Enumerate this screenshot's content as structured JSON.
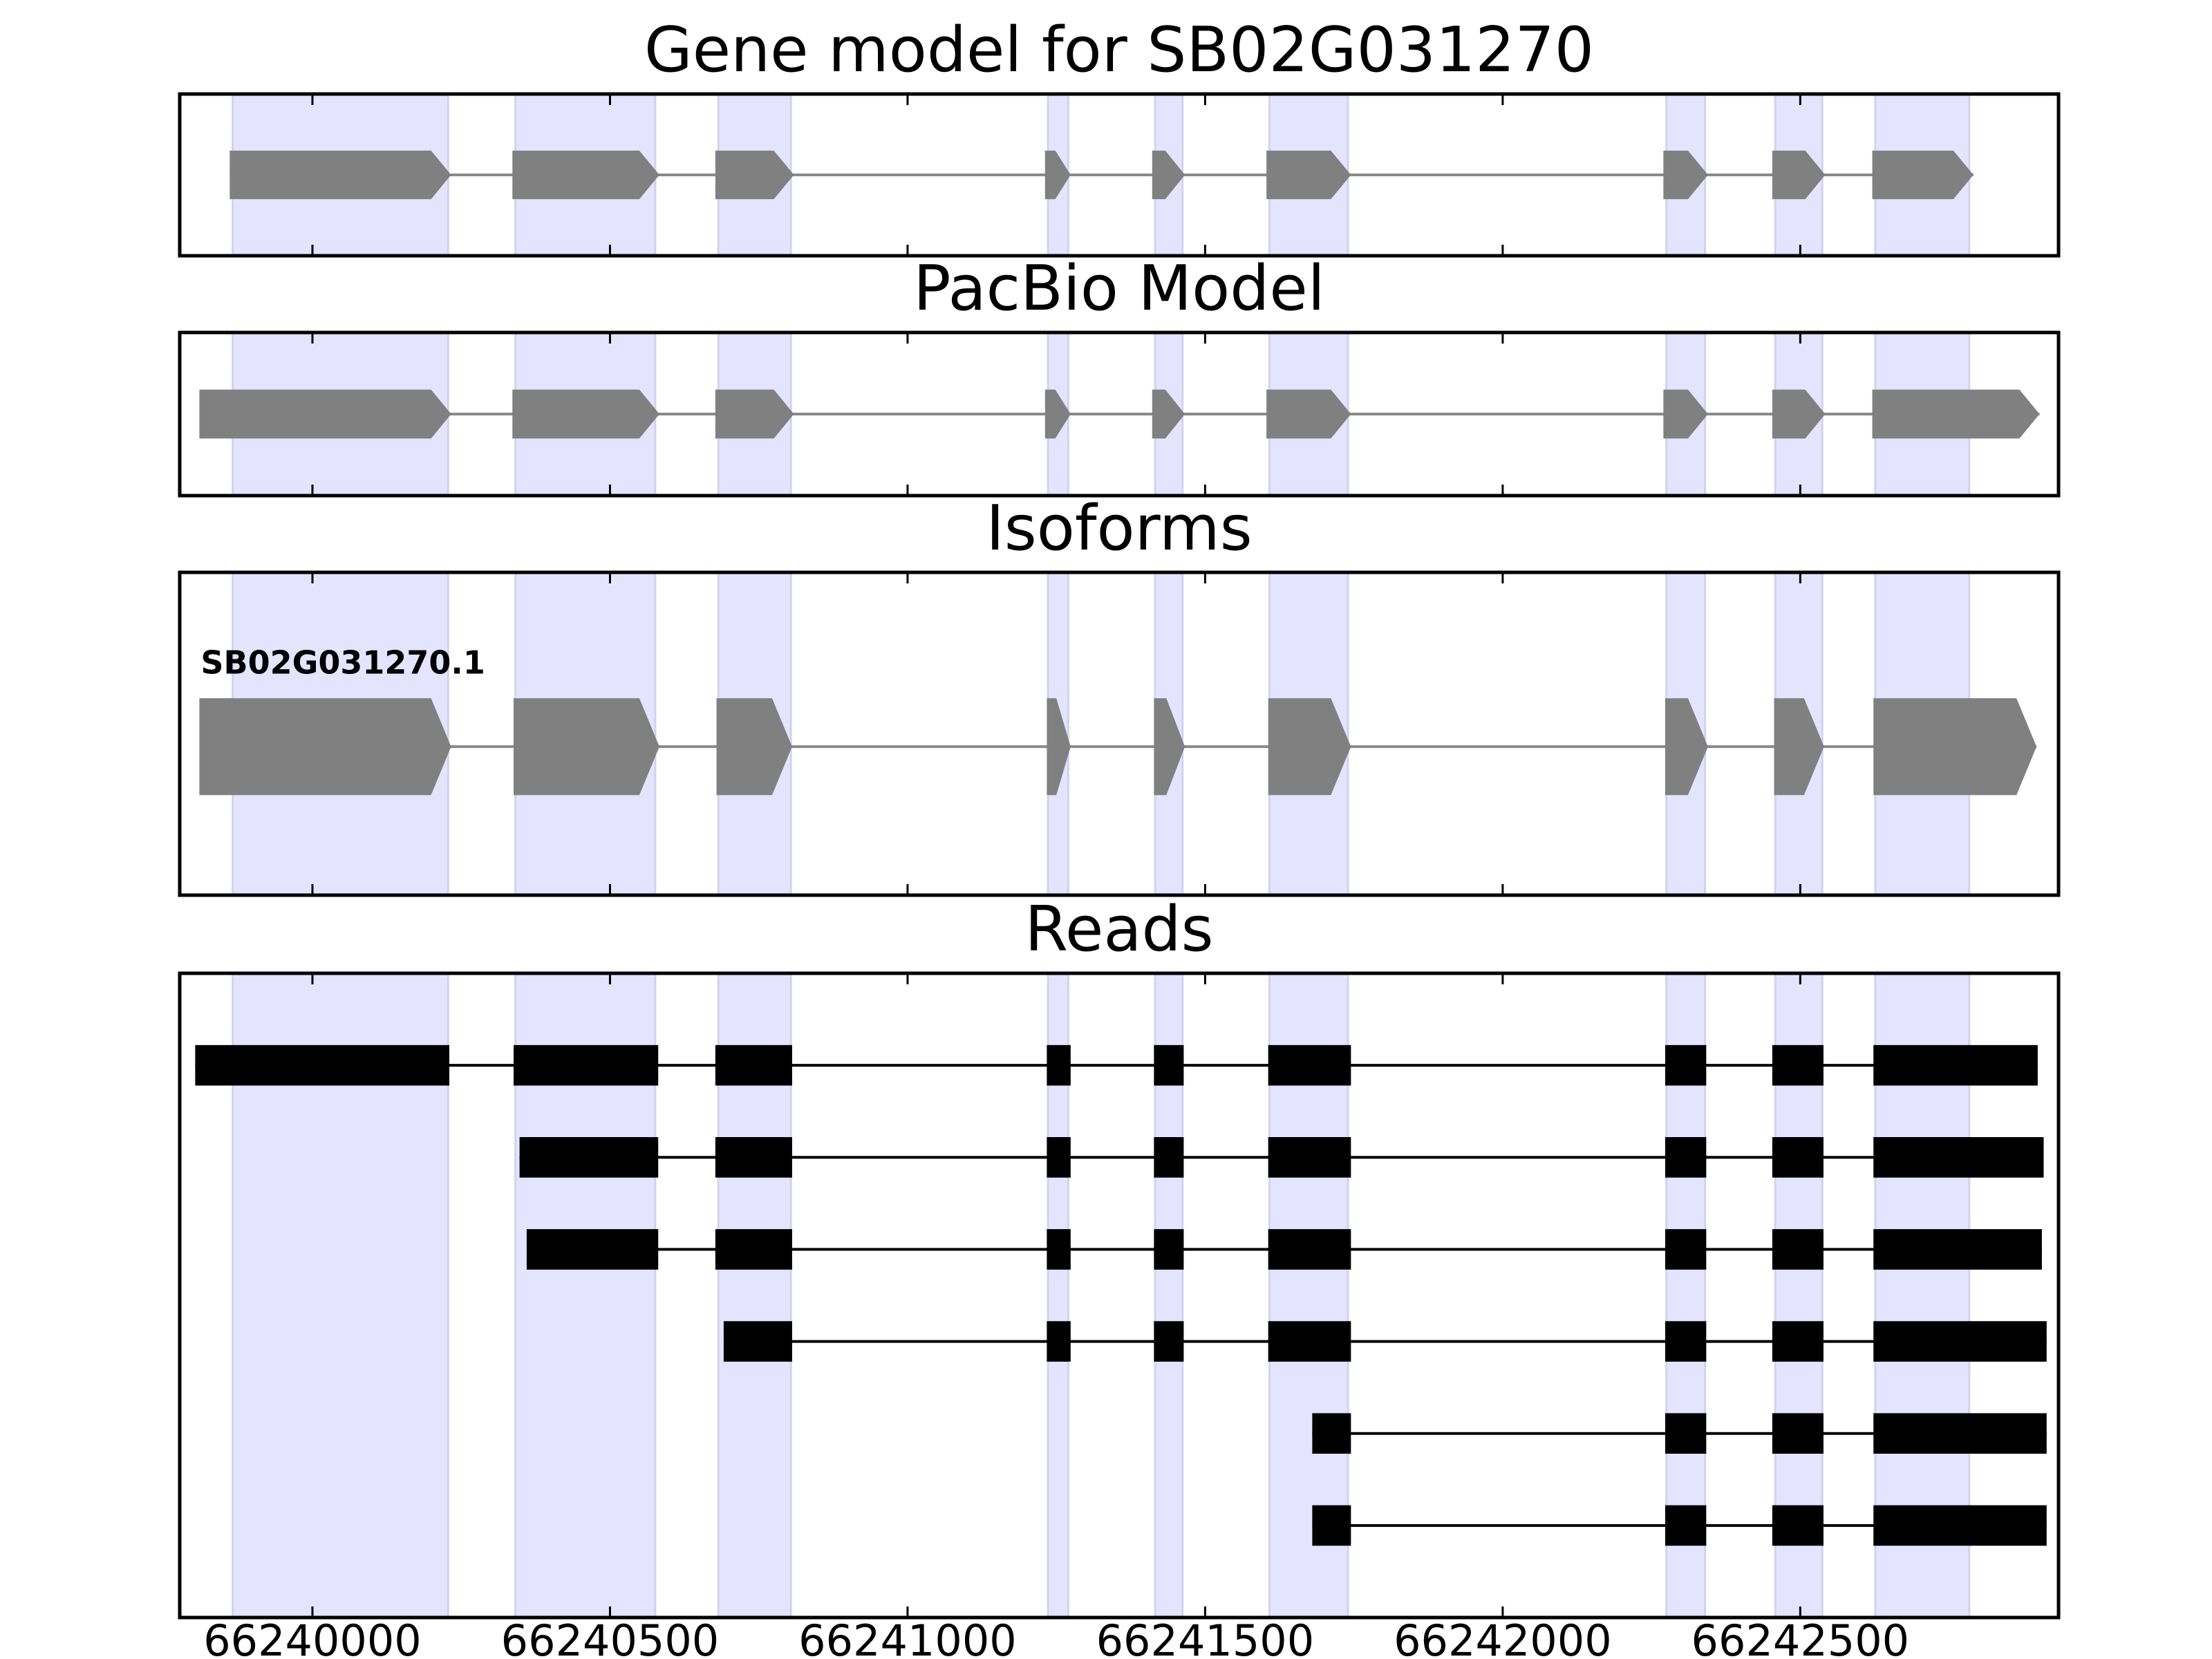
{
  "chart_data": [
    {
      "type": "gene_model",
      "title": "Gene model for SB02G031270",
      "color": "#808080",
      "highlight_color": "#e4e4ff",
      "xlim": [
        66239777,
        66242934
      ],
      "xticks": [
        66240000,
        66240500,
        66241000,
        66241500,
        66242000,
        66242500
      ],
      "highlights": [
        [
          66239866,
          66240228
        ],
        [
          66240341,
          66240576
        ],
        [
          66240682,
          66240804
        ],
        [
          66241236,
          66241270
        ],
        [
          66241416,
          66241462
        ],
        [
          66241608,
          66241740
        ],
        [
          66242275,
          66242340
        ],
        [
          66242458,
          66242537
        ],
        [
          66242626,
          66242784
        ]
      ],
      "features": [
        {
          "exons": [
            [
              66239861,
              66240233
            ],
            [
              66240336,
              66240583
            ],
            [
              66240677,
              66240809
            ],
            [
              66241231,
              66241274
            ],
            [
              66241411,
              66241466
            ],
            [
              66241603,
              66241745
            ],
            [
              66242270,
              66242345
            ],
            [
              66242453,
              66242542
            ],
            [
              66242621,
              66242791
            ]
          ]
        }
      ]
    },
    {
      "type": "gene_model",
      "title": "PacBio Model",
      "color": "#808080",
      "highlight_color": "#e4e4ff",
      "xlim": [
        66239777,
        66242934
      ],
      "xticks": [
        66240000,
        66240500,
        66241000,
        66241500,
        66242000,
        66242500
      ],
      "highlights": [
        [
          66239866,
          66240228
        ],
        [
          66240341,
          66240576
        ],
        [
          66240682,
          66240804
        ],
        [
          66241236,
          66241270
        ],
        [
          66241416,
          66241462
        ],
        [
          66241608,
          66241740
        ],
        [
          66242275,
          66242340
        ],
        [
          66242458,
          66242537
        ],
        [
          66242626,
          66242784
        ]
      ],
      "features": [
        {
          "exons": [
            [
              66239810,
              66240233
            ],
            [
              66240336,
              66240583
            ],
            [
              66240677,
              66240809
            ],
            [
              66241231,
              66241274
            ],
            [
              66241411,
              66241466
            ],
            [
              66241603,
              66241745
            ],
            [
              66242270,
              66242345
            ],
            [
              66242453,
              66242542
            ],
            [
              66242621,
              66242902
            ]
          ]
        }
      ]
    },
    {
      "type": "gene_model",
      "title": "Isoforms",
      "color": "#808080",
      "highlight_color": "#e4e4ff",
      "xlim": [
        66239777,
        66242934
      ],
      "xticks": [
        66240000,
        66240500,
        66241000,
        66241500,
        66242000,
        66242500
      ],
      "highlights": [
        [
          66239866,
          66240228
        ],
        [
          66240341,
          66240576
        ],
        [
          66240682,
          66240804
        ],
        [
          66241236,
          66241270
        ],
        [
          66241416,
          66241462
        ],
        [
          66241608,
          66241740
        ],
        [
          66242275,
          66242340
        ],
        [
          66242458,
          66242537
        ],
        [
          66242626,
          66242784
        ]
      ],
      "features": [
        {
          "name": "SB02G031270.1",
          "exons": [
            [
              66239810,
              66240233
            ],
            [
              66240338,
              66240583
            ],
            [
              66240679,
              66240806
            ],
            [
              66241234,
              66241274
            ],
            [
              66241414,
              66241466
            ],
            [
              66241606,
              66241745
            ],
            [
              66242273,
              66242345
            ],
            [
              66242456,
              66242540
            ],
            [
              66242623,
              66242897
            ]
          ]
        }
      ]
    },
    {
      "type": "reads",
      "title": "Reads",
      "color": "#000000",
      "highlight_color": "#e4e4ff",
      "xlim": [
        66239777,
        66242934
      ],
      "xticks": [
        66240000,
        66240500,
        66241000,
        66241500,
        66242000,
        66242500
      ],
      "highlights": [
        [
          66239866,
          66240228
        ],
        [
          66240341,
          66240576
        ],
        [
          66240682,
          66240804
        ],
        [
          66241236,
          66241270
        ],
        [
          66241416,
          66241462
        ],
        [
          66241608,
          66241740
        ],
        [
          66242275,
          66242340
        ],
        [
          66242458,
          66242537
        ],
        [
          66242626,
          66242784
        ]
      ],
      "features": [
        {
          "exons": [
            [
              66239803,
              66240230
            ],
            [
              66240338,
              66240581
            ],
            [
              66240677,
              66240806
            ],
            [
              66241234,
              66241274
            ],
            [
              66241414,
              66241464
            ],
            [
              66241606,
              66241745
            ],
            [
              66242273,
              66242342
            ],
            [
              66242453,
              66242539
            ],
            [
              66242623,
              66242899
            ]
          ]
        },
        {
          "exons": [
            [
              66240348,
              66240581
            ],
            [
              66240677,
              66240806
            ],
            [
              66241234,
              66241274
            ],
            [
              66241414,
              66241464
            ],
            [
              66241606,
              66241745
            ],
            [
              66242273,
              66242342
            ],
            [
              66242453,
              66242539
            ],
            [
              66242623,
              66242909
            ]
          ]
        },
        {
          "exons": [
            [
              66240360,
              66240581
            ],
            [
              66240677,
              66240806
            ],
            [
              66241234,
              66241274
            ],
            [
              66241414,
              66241464
            ],
            [
              66241606,
              66241745
            ],
            [
              66242273,
              66242342
            ],
            [
              66242453,
              66242539
            ],
            [
              66242623,
              66242906
            ]
          ]
        },
        {
          "exons": [
            [
              66240691,
              66240806
            ],
            [
              66241234,
              66241274
            ],
            [
              66241414,
              66241464
            ],
            [
              66241606,
              66241745
            ],
            [
              66242273,
              66242342
            ],
            [
              66242453,
              66242539
            ],
            [
              66242623,
              66242914
            ]
          ]
        },
        {
          "exons": [
            [
              66241680,
              66241745
            ],
            [
              66242273,
              66242342
            ],
            [
              66242453,
              66242539
            ],
            [
              66242623,
              66242914
            ]
          ]
        },
        {
          "exons": [
            [
              66241680,
              66241745
            ],
            [
              66242273,
              66242342
            ],
            [
              66242453,
              66242539
            ],
            [
              66242623,
              66242914
            ]
          ]
        }
      ]
    }
  ]
}
